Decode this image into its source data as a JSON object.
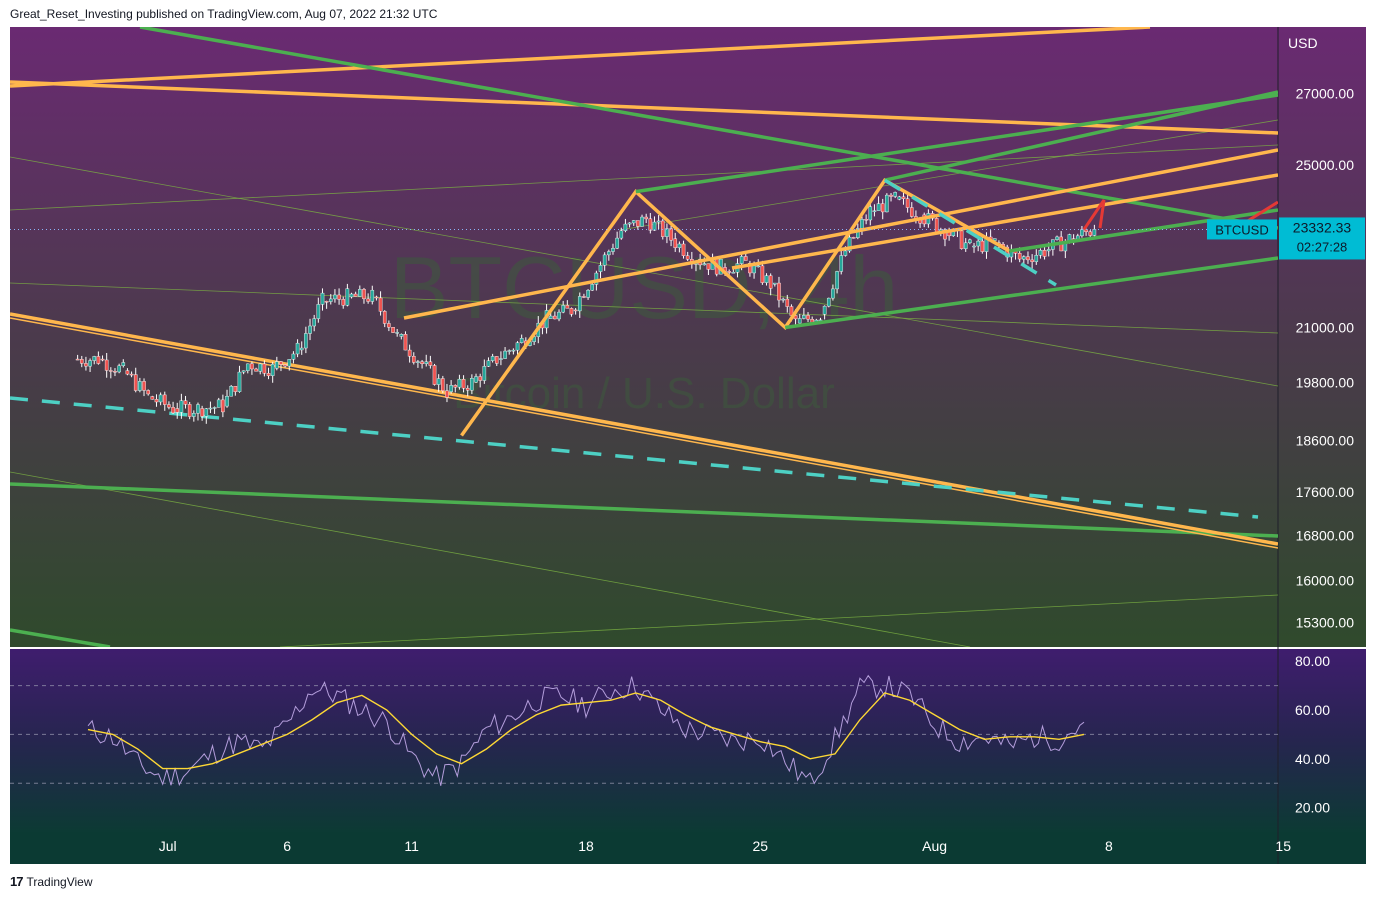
{
  "header": {
    "publish_line": "Great_Reset_Investing published on TradingView.com, Aug 07, 2022 21:32 UTC"
  },
  "footer": {
    "brand": "TradingView",
    "logo_glyph": "17"
  },
  "watermark": {
    "symbol_tf": "BTCUSD, 4h",
    "description": "Bitcoin / U.S. Dollar"
  },
  "colors": {
    "up": "#26a69a",
    "down": "#ef5350",
    "pattern_orange": "#ffb74d",
    "pattern_green": "#4caf50",
    "dashed_teal": "#4dd0c4",
    "forecast_red": "#e53935",
    "rsi_line": "#b39ddb",
    "rsi_ma": "#fdd835",
    "label_bg": "#00bcd4"
  },
  "price_axis": {
    "currency": "USD",
    "ticks": [
      "27000.00",
      "25000.00",
      "21000.00",
      "19800.00",
      "18600.00",
      "17600.00",
      "16800.00",
      "16000.00",
      "15300.00"
    ],
    "last_symbol": "BTCUSD",
    "last_price": "23332.33",
    "countdown": "02:27:28"
  },
  "rsi_axis": {
    "ticks": [
      "80.00",
      "60.00",
      "40.00",
      "20.00"
    ],
    "bands": [
      70,
      50,
      30
    ]
  },
  "time_axis": {
    "labels": [
      "Jul",
      "6",
      "11",
      "18",
      "25",
      "Aug",
      "8",
      "15"
    ]
  },
  "chart_data": [
    {
      "type": "candlestick",
      "symbol": "BTCUSD",
      "timeframe": "4h",
      "y_scale": "log",
      "ylim": [
        14900,
        29000
      ],
      "x_range": [
        "Jun 28",
        "Aug 18"
      ],
      "last_price": 23332.33,
      "days": [
        "Jun 28",
        "Jun 29",
        "Jun 30",
        "Jul 1",
        "Jul 2",
        "Jul 3",
        "Jul 4",
        "Jul 5",
        "Jul 6",
        "Jul 7",
        "Jul 8",
        "Jul 9",
        "Jul 10",
        "Jul 11",
        "Jul 12",
        "Jul 13",
        "Jul 14",
        "Jul 15",
        "Jul 16",
        "Jul 17",
        "Jul 18",
        "Jul 19",
        "Jul 20",
        "Jul 21",
        "Jul 22",
        "Jul 23",
        "Jul 24",
        "Jul 25",
        "Jul 26",
        "Jul 27",
        "Jul 28",
        "Jul 29",
        "Jul 30",
        "Jul 31",
        "Aug 1",
        "Aug 2",
        "Aug 3",
        "Aug 4",
        "Aug 5",
        "Aug 6",
        "Aug 7"
      ],
      "daily_close": [
        20300,
        20050,
        19500,
        19250,
        19250,
        19300,
        20200,
        20100,
        20500,
        21600,
        21700,
        21700,
        20800,
        20200,
        19600,
        19800,
        20300,
        20700,
        21200,
        21400,
        22300,
        23300,
        23600,
        23100,
        22600,
        22400,
        22500,
        22000,
        21100,
        21300,
        22800,
        23800,
        24100,
        23700,
        23300,
        22900,
        23000,
        22600,
        22800,
        23100,
        23332.33
      ],
      "pattern_points": {
        "orange_swings": [
          [
            "Jul 13",
            18700
          ],
          [
            "Jul 20",
            24300
          ],
          [
            "Jul 26",
            21000
          ],
          [
            "Jul 30",
            24600
          ],
          [
            "Aug 4",
            22800
          ]
        ],
        "green_channel": [
          [
            "Jul 20",
            24300
          ],
          [
            "Jul 26",
            21000
          ],
          [
            "Jul 30",
            24600
          ],
          [
            "Aug 4",
            22800
          ]
        ]
      }
    },
    {
      "type": "line",
      "title": "RSI",
      "ylim": [
        10,
        85
      ],
      "levels": [
        70,
        50,
        30
      ],
      "series_values_rsi": [
        52,
        49,
        38,
        32,
        35,
        42,
        47,
        44,
        54,
        69,
        66,
        60,
        55,
        41,
        32,
        38,
        52,
        57,
        64,
        66,
        62,
        68,
        70,
        60,
        52,
        50,
        47,
        49,
        39,
        30,
        48,
        69,
        70,
        66,
        54,
        47,
        49,
        45,
        49,
        48,
        55
      ],
      "series_values_ma": [
        52,
        50,
        44,
        36,
        36,
        38,
        42,
        46,
        50,
        56,
        63,
        66,
        60,
        50,
        42,
        38,
        44,
        52,
        58,
        62,
        63,
        64,
        67,
        64,
        58,
        53,
        50,
        47,
        45,
        40,
        42,
        56,
        67,
        64,
        58,
        52,
        48,
        49,
        49,
        48,
        50
      ]
    }
  ]
}
